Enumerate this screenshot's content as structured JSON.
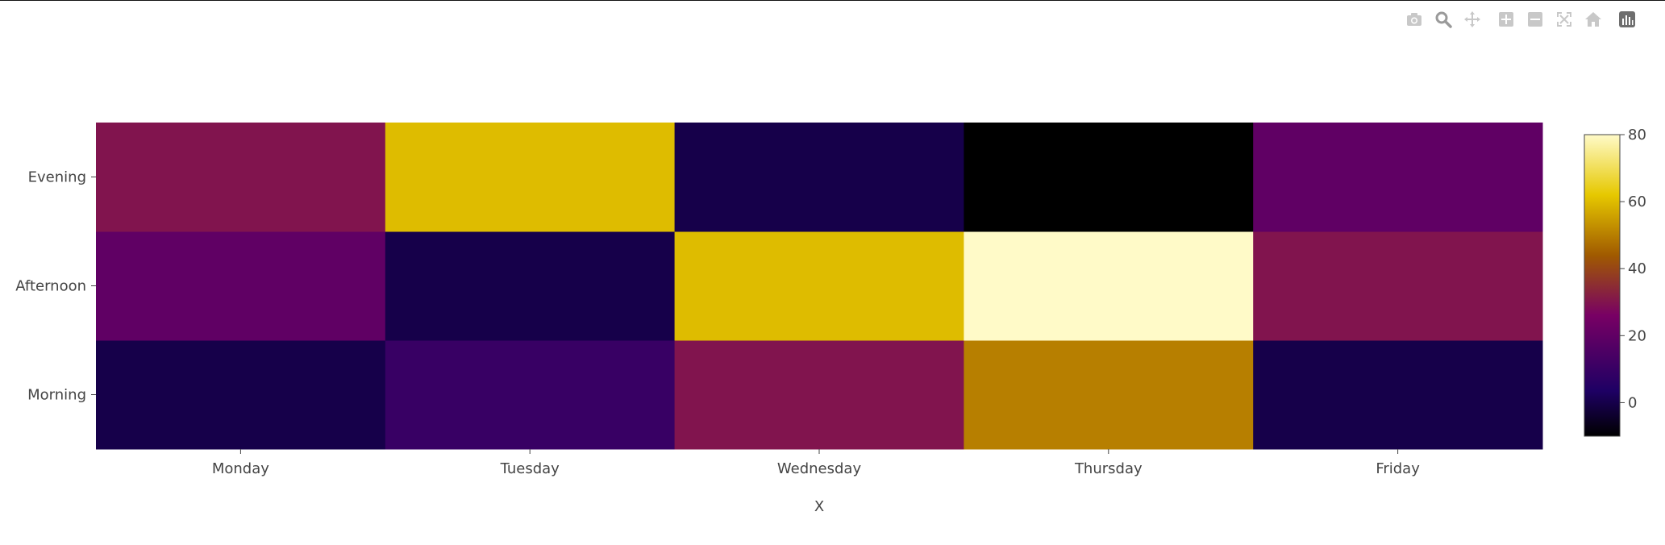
{
  "modebar": {
    "buttons": [
      {
        "name": "camera-icon"
      },
      {
        "name": "zoom-icon"
      },
      {
        "name": "pan-icon"
      },
      {
        "name": "zoom-in-icon"
      },
      {
        "name": "zoom-out-icon"
      },
      {
        "name": "autoscale-icon"
      },
      {
        "name": "home-icon"
      },
      {
        "name": "plotly-logo-icon"
      }
    ]
  },
  "chart_data": {
    "type": "heatmap",
    "x": [
      "Monday",
      "Tuesday",
      "Wednesday",
      "Thursday",
      "Friday"
    ],
    "y": [
      "Morning",
      "Afternoon",
      "Evening"
    ],
    "z": [
      [
        0,
        10,
        30,
        50,
        0
      ],
      [
        20,
        0,
        60,
        80,
        30
      ],
      [
        30,
        60,
        0,
        -10,
        20
      ]
    ],
    "xlabel": "X",
    "ylabel": "",
    "title": "",
    "colorscale_name": "Electric",
    "zmin": -10,
    "zmax": 80,
    "colorbar_ticks": [
      0,
      20,
      40,
      60,
      80
    ],
    "colorscale": [
      [
        0.0,
        "#000000"
      ],
      [
        0.15,
        "#1e0064"
      ],
      [
        0.4,
        "#780064"
      ],
      [
        0.6,
        "#a05a00"
      ],
      [
        0.8,
        "#e6c800"
      ],
      [
        1.0,
        "#fffac8"
      ]
    ]
  }
}
